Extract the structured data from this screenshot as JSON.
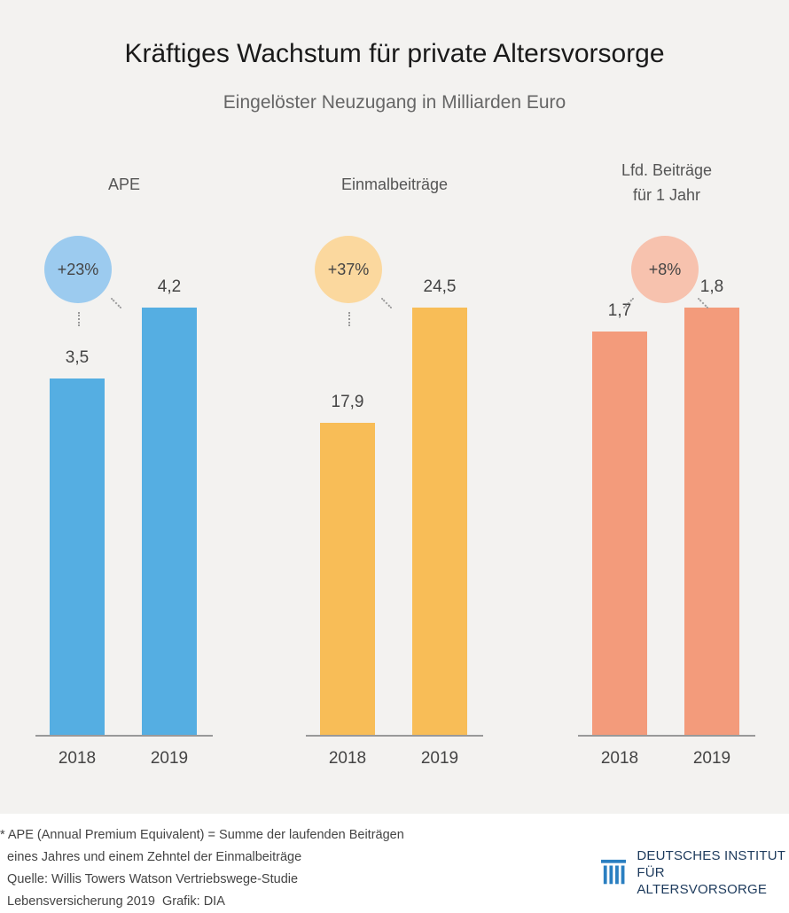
{
  "title": "Kräftiges Wachstum für private Altersvorsorge",
  "subtitle": "Eingelöster Neuzugang in Milliarden Euro",
  "chart_data": [
    {
      "type": "bar",
      "title": "APE",
      "categories": [
        "2018",
        "2019"
      ],
      "values": [
        3.5,
        4.2
      ],
      "value_labels": [
        "3,5",
        "4,2"
      ],
      "change_label": "+23%",
      "color": "#55aee2",
      "circle_color": "#9ccbef"
    },
    {
      "type": "bar",
      "title": "Einmalbeiträge",
      "categories": [
        "2018",
        "2019"
      ],
      "values": [
        17.9,
        24.5
      ],
      "value_labels": [
        "17,9",
        "24,5"
      ],
      "change_label": "+37%",
      "color": "#f8bd57",
      "circle_color": "#fbd89e"
    },
    {
      "type": "bar",
      "title": "Lfd. Beiträge\nfür 1 Jahr",
      "categories": [
        "2018",
        "2019"
      ],
      "values": [
        1.7,
        1.8
      ],
      "value_labels": [
        "1,7",
        "1,8"
      ],
      "change_label": "+8%",
      "color": "#f39b7b",
      "circle_color": "#f7c2ae"
    }
  ],
  "footer": {
    "lines": [
      "* APE (Annual Premium Equivalent) = Summe der laufenden Beiträgen",
      "  eines Jahres und einem Zehntel der Einmalbeiträge",
      "  Quelle: Willis Towers Watson Vertriebswege-Studie",
      "  Lebensversicherung 2019  Grafik: DIA"
    ]
  },
  "logo": {
    "line1": "DEUTSCHES INSTITUT",
    "line2": "FÜR ALTERSVORSORGE",
    "color": "#1d3a5c",
    "icon": "dia-logo-icon"
  }
}
